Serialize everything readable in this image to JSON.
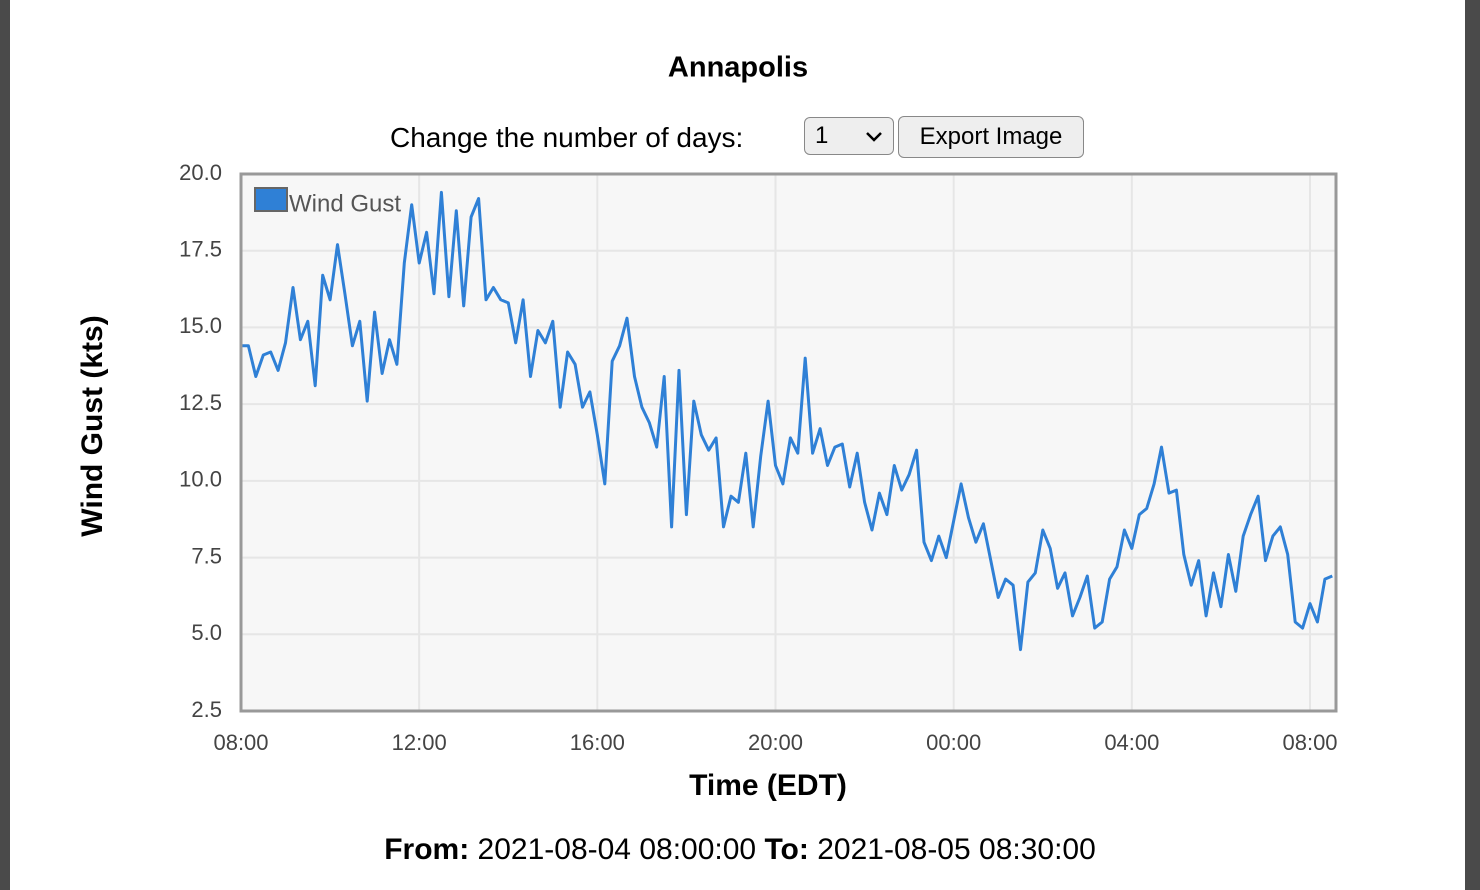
{
  "chart_data": {
    "type": "line",
    "title": "Annapolis",
    "x_label": "Time (EDT)",
    "y_label": "Wind Gust (kts)",
    "x": [
      0,
      10,
      20,
      30,
      40,
      50,
      60,
      70,
      80,
      90,
      100,
      110,
      120,
      130,
      140,
      150,
      160,
      170,
      180,
      190,
      200,
      210,
      220,
      230,
      240,
      250,
      260,
      270,
      280,
      290,
      300,
      310,
      320,
      330,
      340,
      350,
      360,
      370,
      380,
      390,
      400,
      410,
      420,
      430,
      440,
      450,
      460,
      470,
      480,
      490,
      500,
      510,
      520,
      530,
      540,
      550,
      560,
      570,
      580,
      590,
      600,
      610,
      620,
      630,
      640,
      650,
      660,
      670,
      680,
      690,
      700,
      710,
      720,
      730,
      740,
      750,
      760,
      770,
      780,
      790,
      800,
      810,
      820,
      830,
      840,
      850,
      860,
      870,
      880,
      890,
      900,
      910,
      920,
      930,
      940,
      950,
      960,
      970,
      980,
      990,
      1000,
      1010,
      1020,
      1030,
      1040,
      1050,
      1060,
      1070,
      1080,
      1090,
      1100,
      1110,
      1120,
      1130,
      1140,
      1150,
      1160,
      1170,
      1180,
      1190,
      1200,
      1210,
      1220,
      1230,
      1240,
      1250,
      1260,
      1270,
      1280,
      1290,
      1300,
      1310,
      1320,
      1330,
      1340,
      1350,
      1360,
      1370,
      1380,
      1390,
      1400,
      1410,
      1420,
      1430,
      1440,
      1450,
      1460,
      1470
    ],
    "series": [
      {
        "name": "Wind Gust",
        "color": "#2f80d6",
        "values": [
          14.4,
          14.4,
          13.4,
          14.1,
          14.2,
          13.6,
          14.5,
          16.3,
          14.6,
          15.2,
          13.1,
          16.7,
          15.9,
          17.7,
          16.1,
          14.4,
          15.2,
          12.6,
          15.5,
          13.5,
          14.6,
          13.8,
          17.1,
          19.0,
          17.1,
          18.1,
          16.1,
          19.4,
          16.0,
          18.8,
          15.7,
          18.6,
          19.2,
          15.9,
          16.3,
          15.9,
          15.8,
          14.5,
          15.9,
          13.4,
          14.9,
          14.5,
          15.2,
          12.4,
          14.2,
          13.8,
          12.4,
          12.9,
          11.5,
          9.9,
          13.9,
          14.4,
          15.3,
          13.4,
          12.4,
          11.9,
          11.1,
          13.4,
          8.5,
          13.6,
          8.9,
          12.6,
          11.5,
          11.0,
          11.4,
          8.5,
          9.5,
          9.3,
          10.9,
          8.5,
          10.8,
          12.6,
          10.5,
          9.9,
          11.4,
          10.9,
          14.0,
          10.9,
          11.7,
          10.5,
          11.1,
          11.2,
          9.8,
          10.9,
          9.3,
          8.4,
          9.6,
          8.9,
          10.5,
          9.7,
          10.2,
          11.0,
          8.0,
          7.4,
          8.2,
          7.5,
          8.7,
          9.9,
          8.8,
          8.0,
          8.6,
          7.4,
          6.2,
          6.8,
          6.6,
          4.5,
          6.7,
          7.0,
          8.4,
          7.8,
          6.5,
          7.0,
          5.6,
          6.2,
          6.9,
          5.2,
          5.4,
          6.8,
          7.2,
          8.4,
          7.8,
          8.9,
          9.1,
          9.9,
          11.1,
          9.6,
          9.7,
          7.6,
          6.6,
          7.4,
          5.6,
          7.0,
          5.9,
          7.6,
          6.4,
          8.2,
          8.9,
          9.5,
          7.4,
          8.2,
          8.5,
          7.6,
          5.4,
          5.2,
          6.0,
          5.4,
          6.8,
          6.9
        ]
      }
    ],
    "xlim": [
      0,
      1475
    ],
    "xticks": [
      {
        "value": 0,
        "label": "08:00"
      },
      {
        "value": 240,
        "label": "12:00"
      },
      {
        "value": 480,
        "label": "16:00"
      },
      {
        "value": 720,
        "label": "20:00"
      },
      {
        "value": 960,
        "label": "00:00"
      },
      {
        "value": 1200,
        "label": "04:00"
      },
      {
        "value": 1440,
        "label": "08:00"
      }
    ],
    "ylim": [
      2.5,
      20
    ],
    "yticks": [
      {
        "value": 2.5,
        "label": "2.5"
      },
      {
        "value": 5,
        "label": "5.0"
      },
      {
        "value": 7.5,
        "label": "7.5"
      },
      {
        "value": 10,
        "label": "10.0"
      },
      {
        "value": 12.5,
        "label": "12.5"
      },
      {
        "value": 15,
        "label": "15.0"
      },
      {
        "value": 17.5,
        "label": "17.5"
      },
      {
        "value": 20,
        "label": "20.0"
      }
    ],
    "grid": true,
    "legend": "upper left"
  },
  "controls": {
    "days_label": "Change the number of days:",
    "days_value": "1",
    "export_button": "Export Image"
  },
  "footer": {
    "from_label": "From:",
    "from_value": "2021-08-04 08:00:00",
    "to_label": "To:",
    "to_value": "2021-08-05 08:30:00"
  }
}
